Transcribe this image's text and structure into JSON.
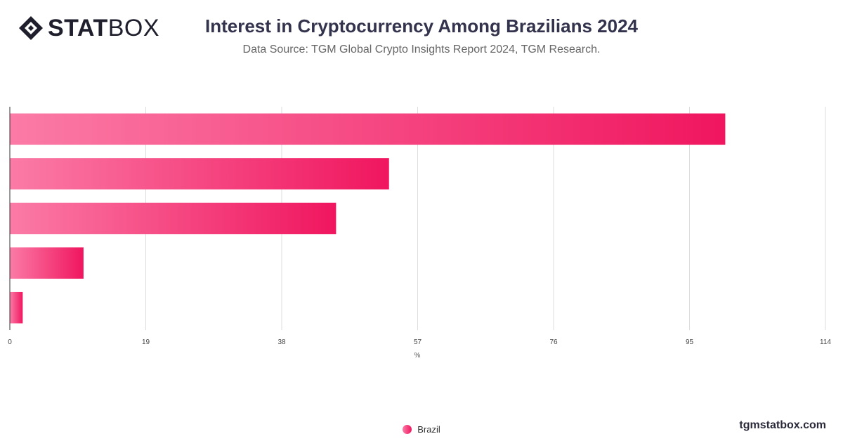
{
  "brand": {
    "logo_bold": "STAT",
    "logo_light": "BOX",
    "website": "tgmstatbox.com"
  },
  "colors": {
    "bar_start": "#fb7ba6",
    "bar_end": "#f0165f",
    "grid": "#dddddd",
    "axis": "#333333"
  },
  "chart_data": {
    "type": "bar",
    "orientation": "horizontal",
    "title": "Interest in Cryptocurrency Among Brazilians 2024",
    "subtitle": "Data Source: TGM Global Crypto Insights Report 2024, TGM Research.",
    "xlabel": "%",
    "ylabel": "",
    "xlim": [
      0,
      114
    ],
    "xticks": [
      "0",
      "19",
      "38",
      "57",
      "76",
      "95",
      "114"
    ],
    "categories": [
      "",
      "",
      "",
      "",
      ""
    ],
    "series": [
      {
        "name": "Brazil",
        "values": [
          100,
          53,
          45.6,
          10.3,
          1.8
        ]
      }
    ],
    "grid": true,
    "legend": "bottom-center"
  }
}
